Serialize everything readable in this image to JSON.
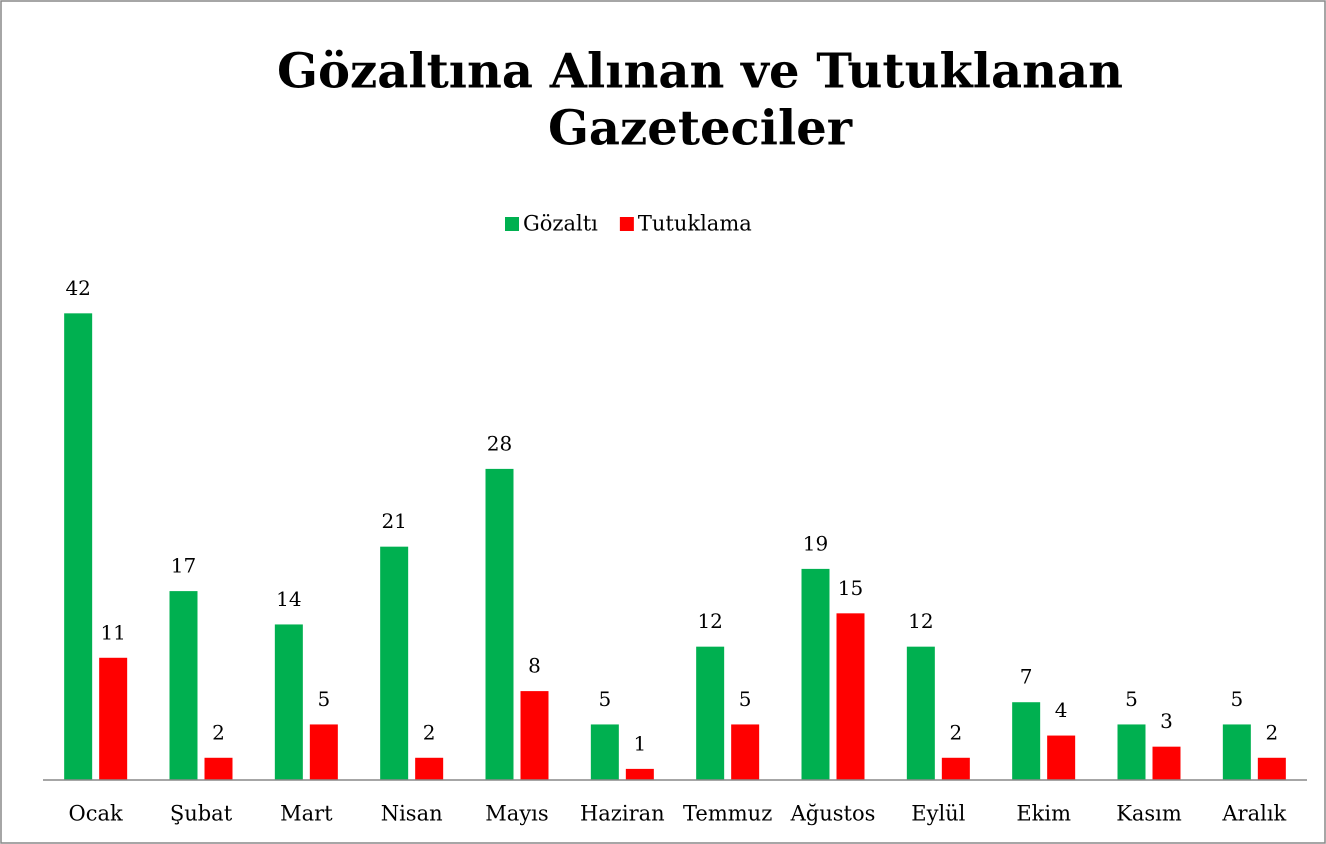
{
  "chart_data": {
    "type": "bar",
    "title": [
      "Gözaltına Alınan ve Tutuklanan",
      "Gazeteciler"
    ],
    "categories": [
      "Ocak",
      "Şubat",
      "Mart",
      "Nisan",
      "Mayıs",
      "Haziran",
      "Temmuz",
      "Ağustos",
      "Eylül",
      "Ekim",
      "Kasım",
      "Aralık"
    ],
    "series": [
      {
        "name": "Gözaltı",
        "color": "#00b050",
        "values": [
          42,
          17,
          14,
          21,
          28,
          5,
          12,
          19,
          12,
          7,
          5,
          5
        ]
      },
      {
        "name": "Tutuklama",
        "color": "#ff0000",
        "values": [
          11,
          2,
          5,
          2,
          8,
          1,
          5,
          15,
          2,
          4,
          3,
          2
        ]
      }
    ],
    "ylim": [
      0,
      45
    ],
    "legend": "top"
  }
}
